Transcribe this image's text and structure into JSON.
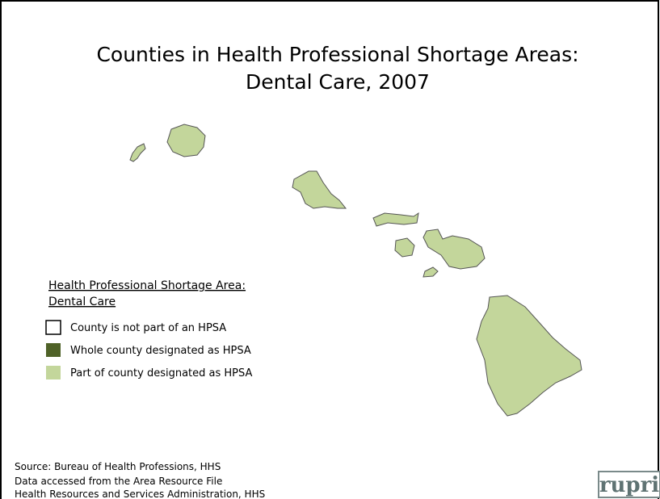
{
  "title": [
    "Counties in Health Professional Shortage Areas:",
    "Dental Care, 2007"
  ],
  "legend": {
    "title": [
      "Health Professional Shortage Area:",
      "Dental Care"
    ],
    "items": [
      {
        "label": "County is not part of an HPSA",
        "color": "#ffffff"
      },
      {
        "label": "Whole county designated as HPSA",
        "color": "#4f6228"
      },
      {
        "label": "Part of county designated as HPSA",
        "color": "#c3d69b"
      }
    ]
  },
  "map_fill": "#c3d69b",
  "source": [
    "Source: Bureau of Health Professions, HHS",
    "Data accessed from the Area Resource File",
    "Health Resources and Services Administration, HHS"
  ],
  "logo": "rupri"
}
